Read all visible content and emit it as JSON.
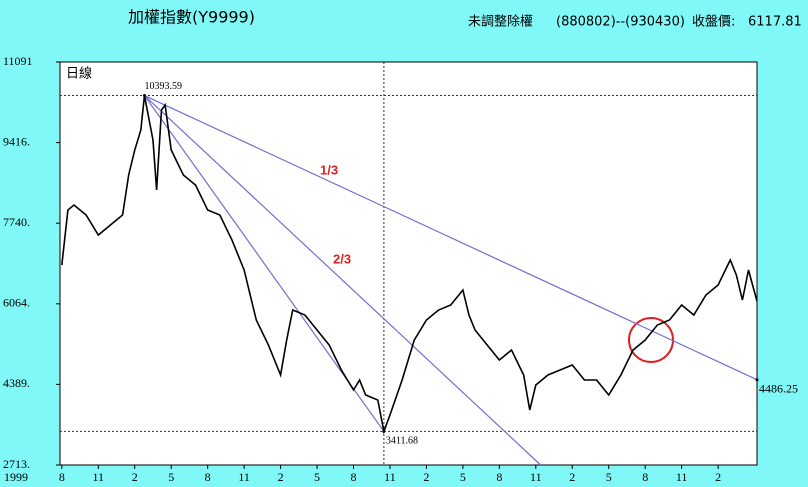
{
  "chart_data": {
    "type": "line",
    "title": "加權指數(Y9999)",
    "adjust_note": "未調整除權",
    "date_range": "(880802)--(930430)",
    "close_label": "收盤價:",
    "close_value": "6117.81",
    "period_label": "日線",
    "x_year_label": "1999",
    "xlim": [
      -0.15,
      57.2
    ],
    "ylim": [
      2713,
      11091
    ],
    "yticks": [
      11091,
      {
        "value": 9416,
        "label": "9416."
      },
      {
        "value": 7740,
        "label": "7740."
      },
      {
        "value": 6064,
        "label": "6064."
      },
      {
        "value": 4389,
        "label": "4389."
      },
      {
        "value": 2713,
        "label": "2713."
      }
    ],
    "xticks": [
      {
        "value": 0,
        "label": "8"
      },
      {
        "value": 3,
        "label": "11"
      },
      {
        "value": 6,
        "label": "2"
      },
      {
        "value": 9,
        "label": "5"
      },
      {
        "value": 12,
        "label": "8"
      },
      {
        "value": 15,
        "label": "11"
      },
      {
        "value": 18,
        "label": "2"
      },
      {
        "value": 21,
        "label": "5"
      },
      {
        "value": 24,
        "label": "8"
      },
      {
        "value": 27,
        "label": "11"
      },
      {
        "value": 30,
        "label": "2"
      },
      {
        "value": 33,
        "label": "5"
      },
      {
        "value": 36,
        "label": "8"
      },
      {
        "value": 39,
        "label": "11"
      },
      {
        "value": 42,
        "label": "2"
      },
      {
        "value": 45,
        "label": "5"
      },
      {
        "value": 48,
        "label": "8"
      },
      {
        "value": 51,
        "label": "11"
      },
      {
        "value": 54,
        "label": "2"
      }
    ],
    "x": [
      0,
      0.5,
      1,
      2,
      3,
      4,
      5,
      5.5,
      6,
      6.5,
      6.8,
      7.5,
      7.8,
      8.2,
      8.5,
      9,
      10,
      11,
      12,
      13,
      14,
      15,
      16,
      17,
      18,
      18.5,
      19,
      20,
      21,
      22,
      23,
      24,
      24.5,
      25,
      26,
      26.5,
      27,
      28,
      28.5,
      29,
      30,
      31,
      32,
      33,
      33.5,
      34,
      35,
      36,
      37,
      38,
      38.5,
      39,
      40,
      41,
      42,
      43,
      44,
      45,
      46,
      47,
      48,
      49,
      50,
      51,
      52,
      53,
      54,
      55,
      55.5,
      56,
      56.5,
      57.2
    ],
    "series": [
      {
        "color": "#000000",
        "values": [
          6870,
          8014,
          8118,
          7910,
          7494,
          7702,
          7910,
          8742,
          9261,
          9677,
          10393.59,
          9469,
          8430,
          10093,
          10197,
          9261,
          8742,
          8534,
          8014,
          7910,
          7390,
          6767,
          5727,
          5207,
          4584,
          5311,
          5935,
          5831,
          5519,
          5207,
          4688,
          4272,
          4480,
          4168,
          4064,
          3411.68,
          3752,
          4480,
          4896,
          5311,
          5727,
          5935,
          6039,
          6351,
          5831,
          5519,
          5207,
          4896,
          5103,
          4584,
          3856,
          4376,
          4584,
          4688,
          4792,
          4480,
          4480,
          4168,
          4584,
          5103,
          5311,
          5623,
          5727,
          6039,
          5831,
          6247,
          6455,
          6975,
          6663,
          6143,
          6767,
          6117.81
        ]
      }
    ],
    "markers": [
      {
        "x": 6.8,
        "value": 10393.59
      },
      {
        "x": 26.5,
        "value": 3411.68
      },
      {
        "x": 57.2,
        "value": 4486.25
      }
    ],
    "fan_lines": [
      {
        "label": "1/3",
        "color": "#7070d0",
        "x": [
          6.8,
          57.2
        ],
        "values": [
          10393.59,
          4486.25
        ]
      },
      {
        "label": "2/3",
        "color": "#7070d0",
        "x": [
          6.8,
          39.4
        ],
        "values": [
          10393.59,
          2713
        ]
      },
      {
        "color": "#7070d0",
        "x": [
          6.8,
          26.5
        ],
        "values": [
          10393.59,
          3411.68
        ]
      }
    ]
  }
}
